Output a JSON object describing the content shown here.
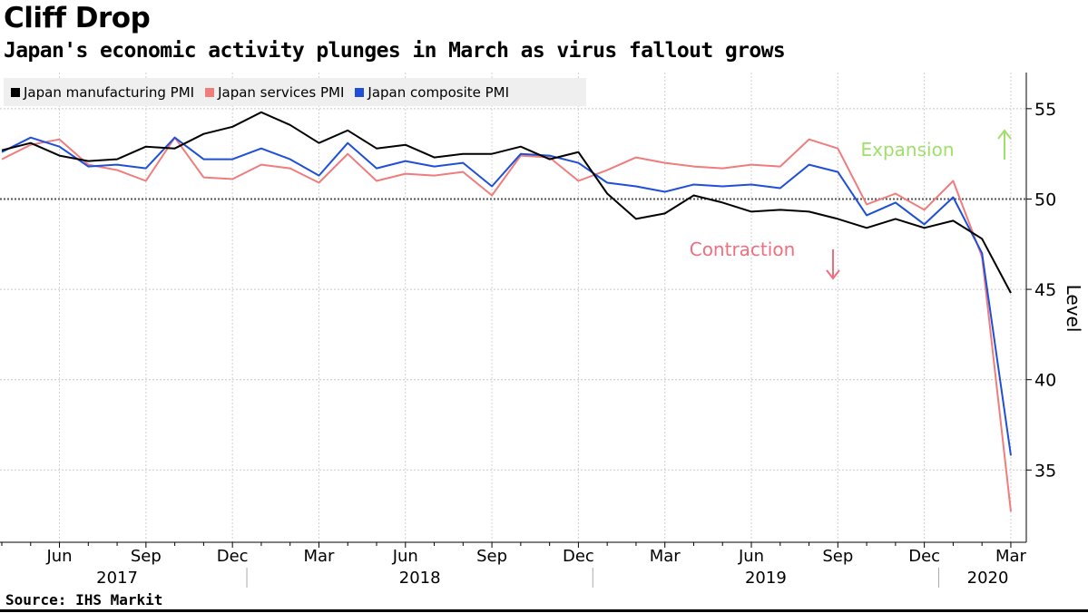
{
  "title": "Cliff Drop",
  "subtitle": "Japan's economic activity plunges in March as virus fallout grows",
  "source": "Source: IHS Markit",
  "chart_data": {
    "type": "line",
    "title": "Cliff Drop",
    "subtitle": "Japan's economic activity plunges in March as virus fallout grows",
    "ylabel": "Level",
    "xlabel": "",
    "ylim": [
      31,
      57
    ],
    "yticks": [
      35,
      40,
      45,
      50,
      55
    ],
    "reference_line": 50,
    "legend_position": "top-left",
    "grid": true,
    "month_ticks": [
      "Jun",
      "Sep",
      "Dec",
      "Mar",
      "Jun",
      "Sep",
      "Dec",
      "Mar",
      "Jun",
      "Sep",
      "Dec",
      "Mar"
    ],
    "year_labels": [
      "2017",
      "2018",
      "2019",
      "2020"
    ],
    "x": [
      "2017-04",
      "2017-05",
      "2017-06",
      "2017-07",
      "2017-08",
      "2017-09",
      "2017-10",
      "2017-11",
      "2017-12",
      "2018-01",
      "2018-02",
      "2018-03",
      "2018-04",
      "2018-05",
      "2018-06",
      "2018-07",
      "2018-08",
      "2018-09",
      "2018-10",
      "2018-11",
      "2018-12",
      "2019-01",
      "2019-02",
      "2019-03",
      "2019-04",
      "2019-05",
      "2019-06",
      "2019-07",
      "2019-08",
      "2019-09",
      "2019-10",
      "2019-11",
      "2019-12",
      "2020-01",
      "2020-02",
      "2020-03"
    ],
    "series": [
      {
        "name": "Japan manufacturing PMI",
        "color": "#000000",
        "values": [
          52.7,
          53.1,
          52.4,
          52.1,
          52.2,
          52.9,
          52.8,
          53.6,
          54.0,
          54.8,
          54.1,
          53.1,
          53.8,
          52.8,
          53.0,
          52.3,
          52.5,
          52.5,
          52.9,
          52.2,
          52.6,
          50.3,
          48.9,
          49.2,
          50.2,
          49.8,
          49.3,
          49.4,
          49.3,
          48.9,
          48.4,
          48.9,
          48.4,
          48.8,
          47.8,
          44.8
        ]
      },
      {
        "name": "Japan services PMI",
        "color": "#f07c7c",
        "values": [
          52.2,
          53.0,
          53.3,
          51.9,
          51.6,
          51.0,
          53.4,
          51.2,
          51.1,
          51.9,
          51.7,
          50.9,
          52.5,
          51.0,
          51.4,
          51.3,
          51.5,
          50.2,
          52.4,
          52.3,
          51.0,
          51.6,
          52.3,
          52.0,
          51.8,
          51.7,
          51.9,
          51.8,
          53.3,
          52.8,
          49.7,
          50.3,
          49.4,
          51.0,
          46.8,
          32.7
        ]
      },
      {
        "name": "Japan composite PMI",
        "color": "#1f4fd8",
        "values": [
          52.6,
          53.4,
          52.9,
          51.8,
          51.9,
          51.7,
          53.4,
          52.2,
          52.2,
          52.8,
          52.2,
          51.3,
          53.1,
          51.7,
          52.1,
          51.8,
          52.0,
          50.7,
          52.5,
          52.4,
          52.0,
          50.9,
          50.7,
          50.4,
          50.8,
          50.7,
          50.8,
          50.6,
          51.9,
          51.5,
          49.1,
          49.8,
          48.6,
          50.1,
          47.0,
          35.8
        ]
      }
    ],
    "annotations": [
      {
        "text": "Expansion",
        "color": "#9fe06a",
        "arrow": "up"
      },
      {
        "text": "Contraction",
        "color": "#ef6f7f",
        "arrow": "down"
      }
    ]
  }
}
